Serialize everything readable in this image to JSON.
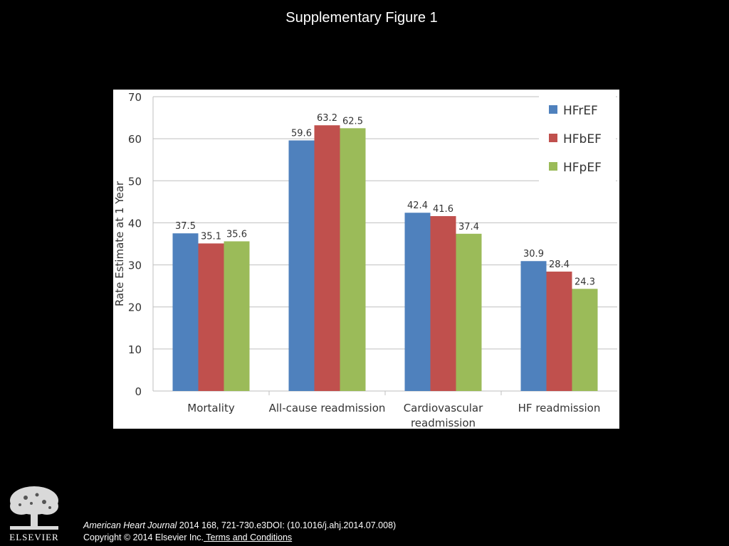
{
  "slide": {
    "title": "Supplementary Figure 1"
  },
  "citation": {
    "journal": "American Heart Journal",
    "details": " 2014 168, 721-730.e3DOI: (10.1016/j.ahj.2014.07.008)",
    "copyright": "Copyright © 2014 Elsevier Inc.",
    "terms_link": " Terms and Conditions"
  },
  "logo": {
    "wordmark": "ELSEVIER",
    "icon": "elsevier-tree-icon"
  },
  "colors": {
    "background": "#000000",
    "HFrEF": "#4F81BD",
    "HFbEF": "#C0504D",
    "HFpEF": "#9BBB59"
  },
  "chart_data": {
    "type": "bar",
    "title": "",
    "xlabel": "",
    "ylabel": "Rate Estimate at 1 Year",
    "ylim": [
      0,
      70
    ],
    "yticks": [
      0,
      10,
      20,
      30,
      40,
      50,
      60,
      70
    ],
    "grid": true,
    "legend_position": "top-right",
    "categories": [
      [
        "Mortality"
      ],
      [
        "All-cause readmission"
      ],
      [
        "Cardiovascular",
        "readmission"
      ],
      [
        "HF readmission"
      ]
    ],
    "series": [
      {
        "name": "HFrEF",
        "color": "#4F81BD",
        "values": [
          37.5,
          59.6,
          42.4,
          30.9
        ]
      },
      {
        "name": "HFbEF",
        "color": "#C0504D",
        "values": [
          35.1,
          63.2,
          41.6,
          28.4
        ]
      },
      {
        "name": "HFpEF",
        "color": "#9BBB59",
        "values": [
          35.6,
          62.5,
          37.4,
          24.3
        ]
      }
    ]
  }
}
